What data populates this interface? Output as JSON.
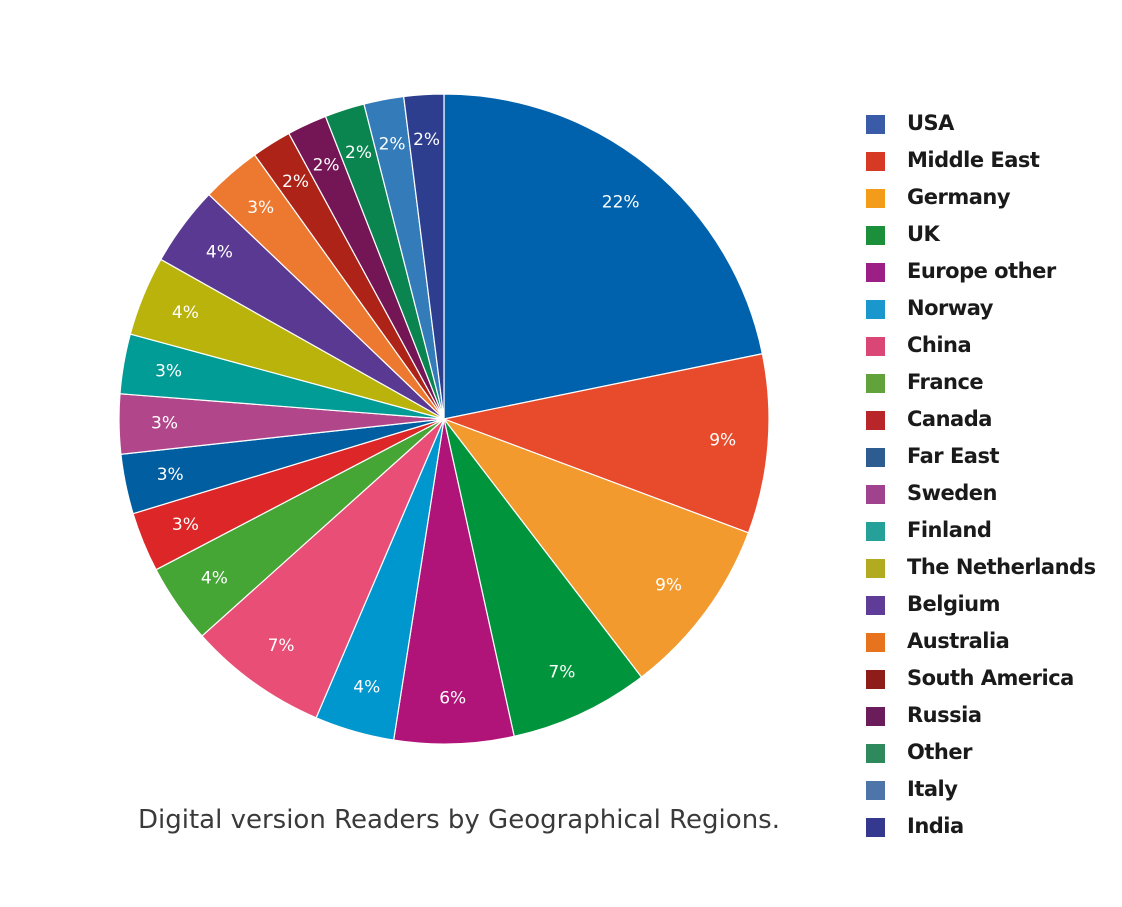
{
  "chart_data": {
    "type": "pie",
    "title": "Digital version Readers by Geographical Regions.",
    "start_angle": "12 o'clock, clockwise",
    "legend_position": "right",
    "slices": [
      {
        "value": 22,
        "label": "22%",
        "color": "#0062ad"
      },
      {
        "value": 9,
        "label": "9%",
        "color": "#e84a2c"
      },
      {
        "value": 9,
        "label": "9%",
        "color": "#f39a2f"
      },
      {
        "value": 7,
        "label": "7%",
        "color": "#00953d"
      },
      {
        "value": 6,
        "label": "6%",
        "color": "#b01478"
      },
      {
        "value": 4,
        "label": "4%",
        "color": "#0096ce"
      },
      {
        "value": 7,
        "label": "7%",
        "color": "#e94e77"
      },
      {
        "value": 4,
        "label": "4%",
        "color": "#45a535"
      },
      {
        "value": 3,
        "label": "3%",
        "color": "#dc2628"
      },
      {
        "value": 3,
        "label": "3%",
        "color": "#005ea1"
      },
      {
        "value": 3,
        "label": "3%",
        "color": "#b1468a"
      },
      {
        "value": 3,
        "label": "3%",
        "color": "#009c95"
      },
      {
        "value": 4,
        "label": "4%",
        "color": "#b9b30b"
      },
      {
        "value": 4,
        "label": "4%",
        "color": "#5a3992"
      },
      {
        "value": 3,
        "label": "3%",
        "color": "#ed7930"
      },
      {
        "value": 2,
        "label": "2%",
        "color": "#ad2318"
      },
      {
        "value": 2,
        "label": "2%",
        "color": "#741556"
      },
      {
        "value": 2,
        "label": "2%",
        "color": "#0a8550"
      },
      {
        "value": 2,
        "label": "2%",
        "color": "#337bb9"
      },
      {
        "value": 2,
        "label": "2%",
        "color": "#2e3e8f"
      }
    ],
    "legend": [
      {
        "name": "USA",
        "color": "#3a5ca8"
      },
      {
        "name": "Middle East",
        "color": "#d63a25"
      },
      {
        "name": "Germany",
        "color": "#f39c1a"
      },
      {
        "name": "UK",
        "color": "#1c8f3a"
      },
      {
        "name": "Europe other",
        "color": "#9c1f86"
      },
      {
        "name": "Norway",
        "color": "#1a98cd"
      },
      {
        "name": "China",
        "color": "#da4676"
      },
      {
        "name": "France",
        "color": "#62a23a"
      },
      {
        "name": "Canada",
        "color": "#b8262a"
      },
      {
        "name": "Far East",
        "color": "#2d5c91"
      },
      {
        "name": "Sweden",
        "color": "#a1428f"
      },
      {
        "name": "Finland",
        "color": "#26a199"
      },
      {
        "name": "The Netherlands",
        "color": "#b2aa1f"
      },
      {
        "name": "Belgium",
        "color": "#5e3c98"
      },
      {
        "name": "Australia",
        "color": "#e8731f"
      },
      {
        "name": "South America",
        "color": "#8e1c18"
      },
      {
        "name": "Russia",
        "color": "#6b1d5b"
      },
      {
        "name": "Other",
        "color": "#2e8a5c"
      },
      {
        "name": "Italy",
        "color": "#4d75aa"
      },
      {
        "name": "India",
        "color": "#35388f"
      }
    ]
  }
}
